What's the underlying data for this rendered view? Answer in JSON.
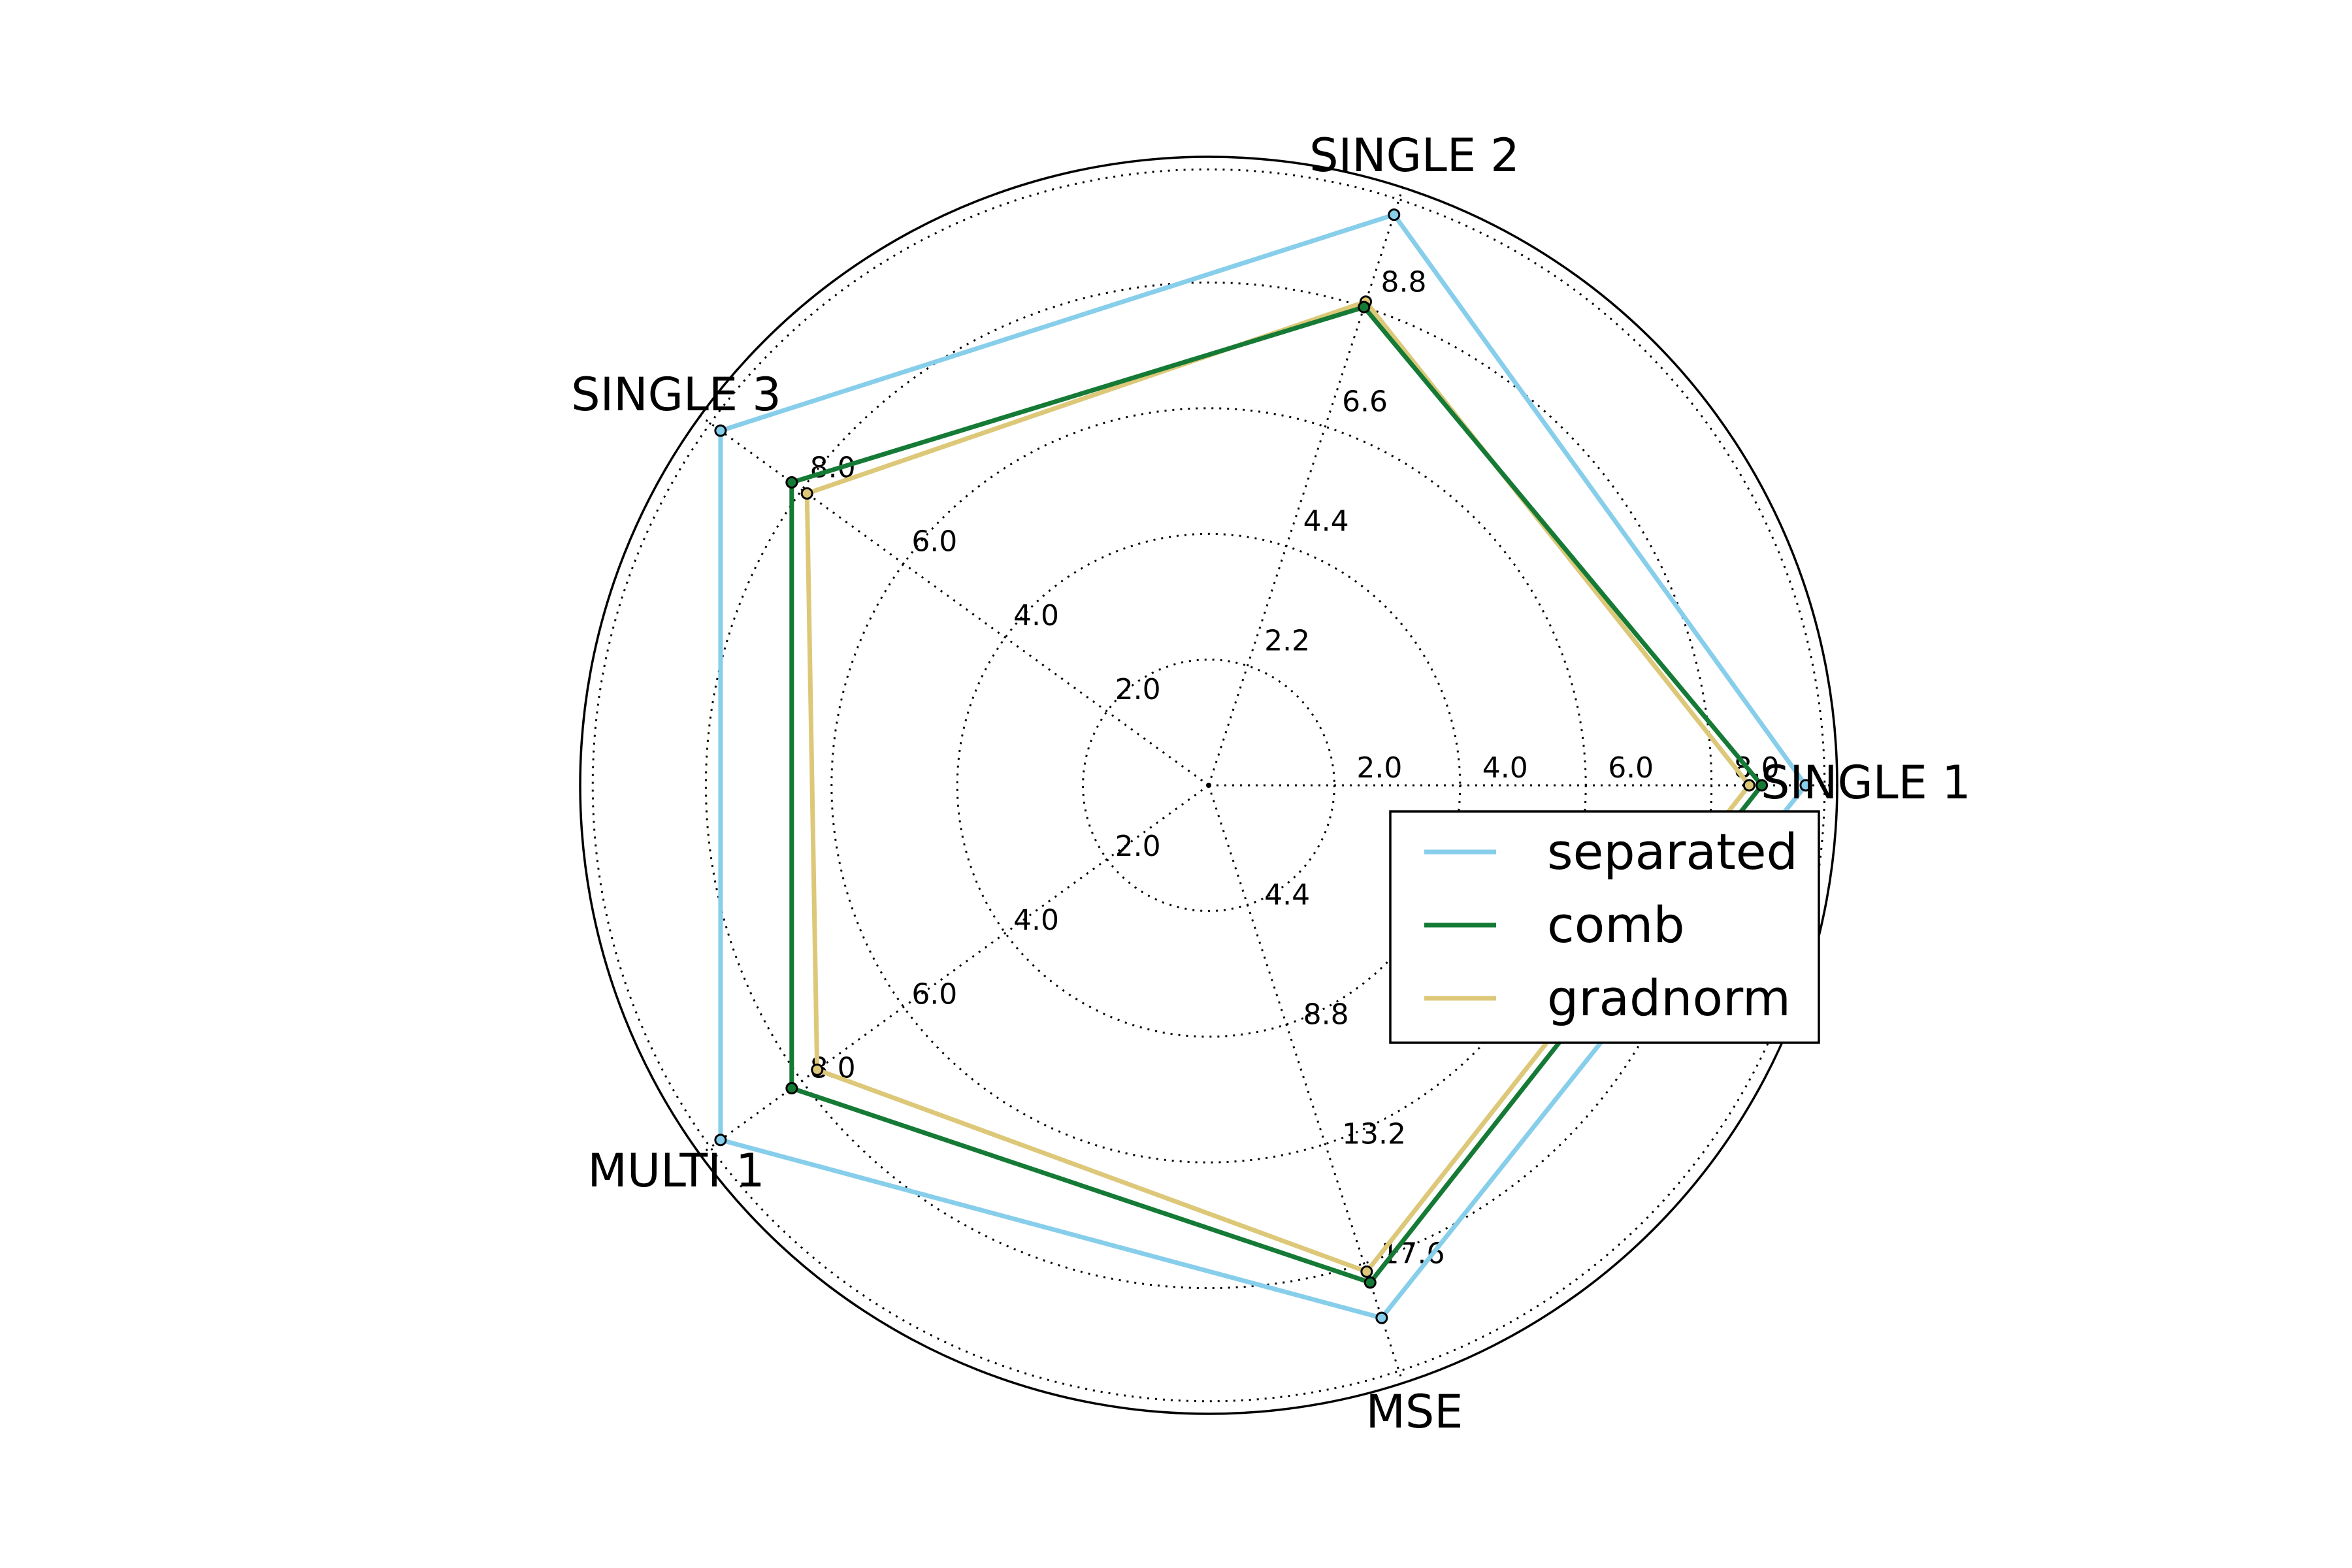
{
  "chart_data": {
    "type": "radar",
    "axes": [
      {
        "label": "SINGLE 1",
        "ticks": [
          "2.0",
          "4.0",
          "6.0",
          "8.0"
        ],
        "range": [
          0,
          10
        ]
      },
      {
        "label": "SINGLE 2",
        "ticks": [
          "2.2",
          "4.4",
          "6.6",
          "8.8"
        ],
        "range": [
          0,
          11
        ]
      },
      {
        "label": "SINGLE 3",
        "ticks": [
          "2.0",
          "4.0",
          "6.0",
          "8.0"
        ],
        "range": [
          0,
          10
        ]
      },
      {
        "label": "MULTI 1",
        "ticks": [
          "2.0",
          "4.0",
          "6.0",
          "8.0"
        ],
        "range": [
          0,
          10
        ]
      },
      {
        "label": "MSE",
        "ticks": [
          "4.4",
          "8.8",
          "13.2",
          "17.6"
        ],
        "range": [
          0,
          22
        ]
      }
    ],
    "series": [
      {
        "name": "separated",
        "color": "#87ceeb",
        "values": [
          9.5,
          10.5,
          9.6,
          9.6,
          19.6
        ]
      },
      {
        "name": "comb",
        "color": "#157a35",
        "values": [
          8.8,
          8.8,
          8.2,
          8.2,
          18.3
        ]
      },
      {
        "name": "gradnorm",
        "color": "#dcc878",
        "values": [
          8.6,
          8.9,
          7.9,
          7.7,
          17.9
        ]
      }
    ],
    "grid": true,
    "legend_position": "right"
  }
}
